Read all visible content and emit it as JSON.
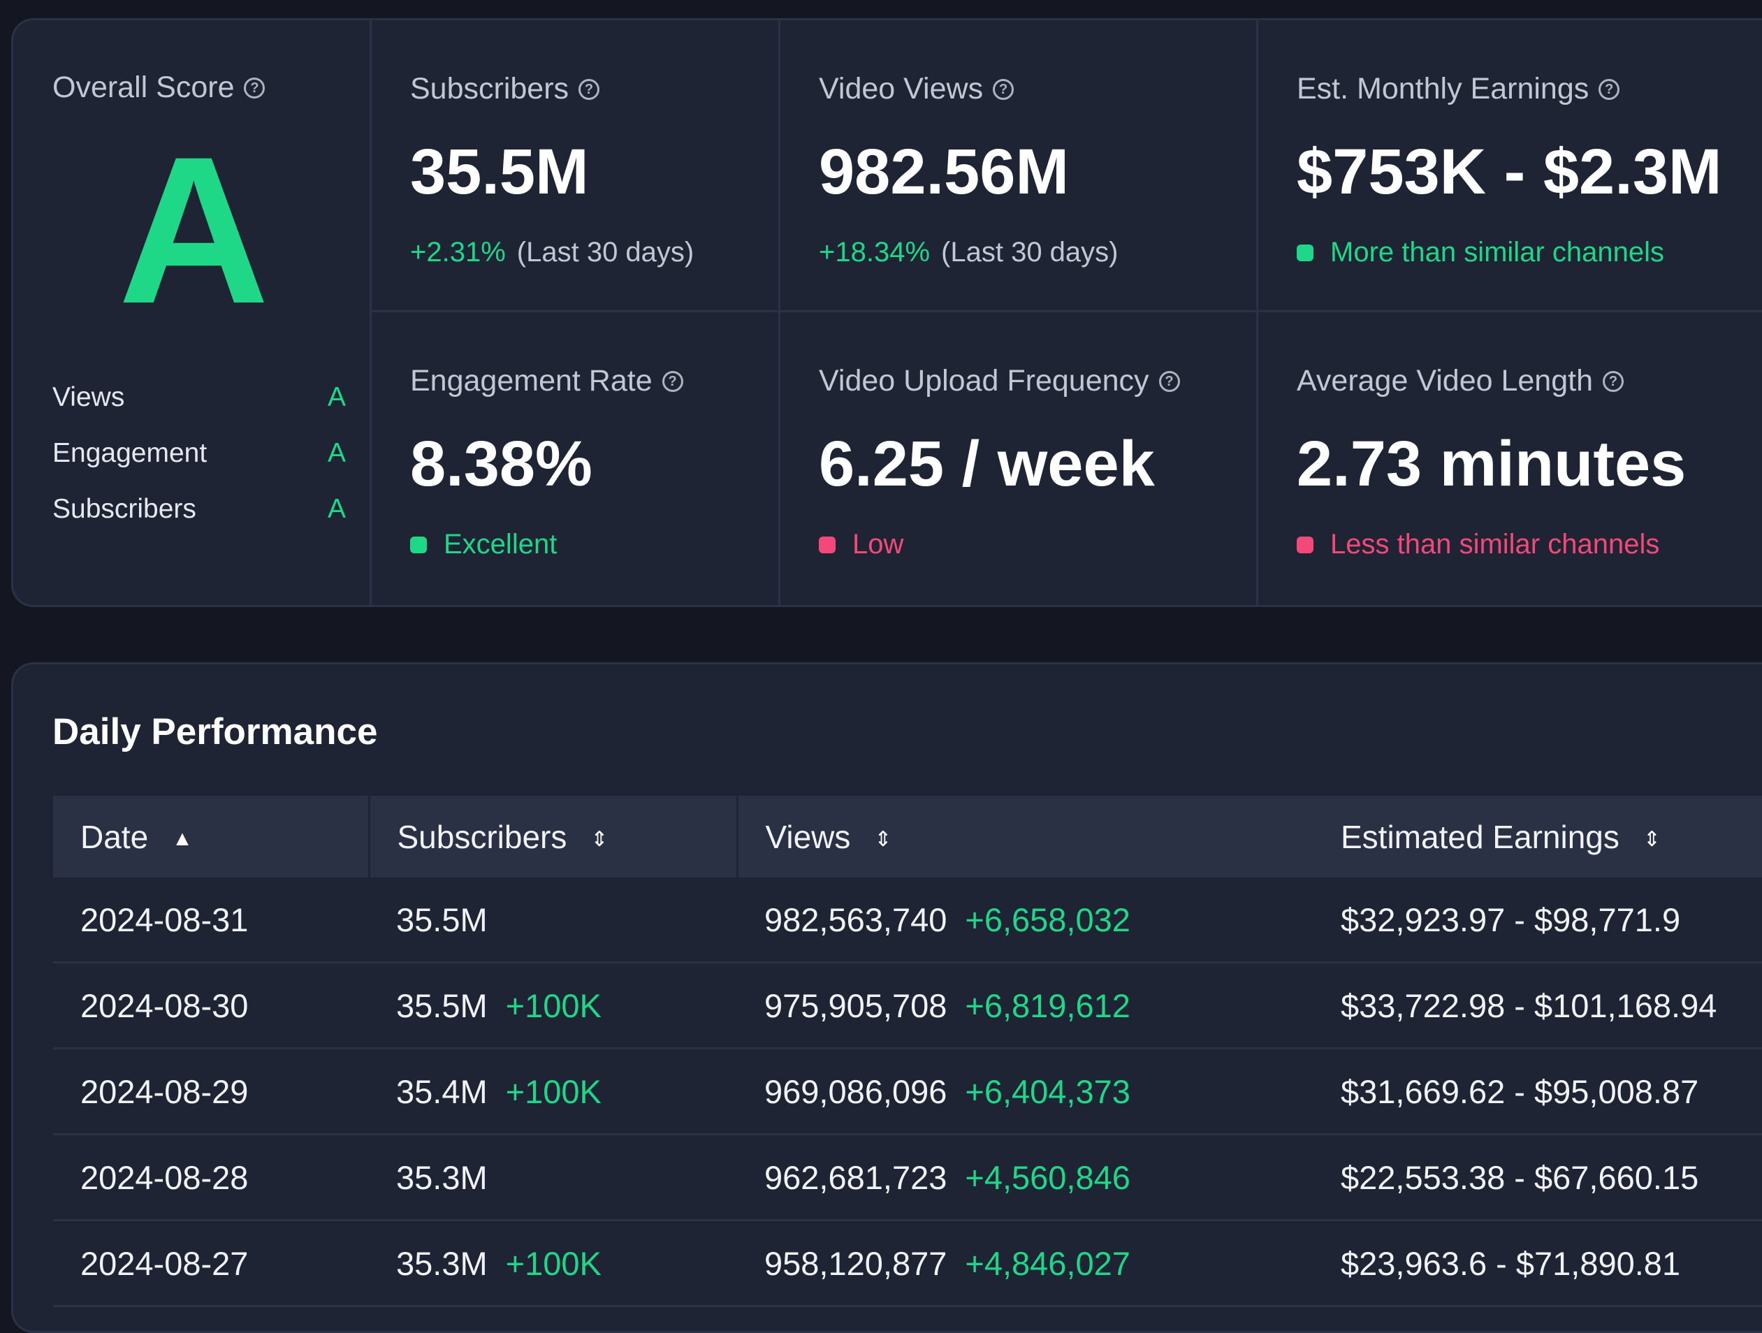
{
  "overall": {
    "title": "Overall Score",
    "grade": "A",
    "sub_grades": [
      {
        "label": "Views",
        "grade": "A"
      },
      {
        "label": "Engagement",
        "grade": "A"
      },
      {
        "label": "Subscribers",
        "grade": "A"
      }
    ]
  },
  "stats": {
    "subscribers": {
      "label": "Subscribers",
      "value": "35.5M",
      "change": "+2.31%",
      "period": "(Last 30 days)"
    },
    "views": {
      "label": "Video Views",
      "value": "982.56M",
      "change": "+18.34%",
      "period": "(Last 30 days)"
    },
    "earnings": {
      "label": "Est. Monthly Earnings",
      "value": "$753K - $2.3M",
      "status": "More than similar channels",
      "status_color": "#1ed888"
    },
    "engagement": {
      "label": "Engagement Rate",
      "value": "8.38%",
      "status": "Excellent",
      "status_color": "#1ed888"
    },
    "frequency": {
      "label": "Video Upload Frequency",
      "value": "6.25 / week",
      "status": "Low",
      "status_color": "#f2497a"
    },
    "length": {
      "label": "Average Video Length",
      "value": "2.73 minutes",
      "status": "Less than similar channels",
      "status_color": "#f2497a"
    }
  },
  "daily": {
    "title": "Daily Performance",
    "columns": [
      "Date",
      "Subscribers",
      "Views",
      "Estimated Earnings"
    ],
    "rows": [
      {
        "date": "2024-08-31",
        "subs": "35.5M",
        "subs_delta": "",
        "views": "982,563,740",
        "views_delta": "+6,658,032",
        "earnings": "$32,923.97 - $98,771.9"
      },
      {
        "date": "2024-08-30",
        "subs": "35.5M",
        "subs_delta": "+100K",
        "views": "975,905,708",
        "views_delta": "+6,819,612",
        "earnings": "$33,722.98 - $101,168.94"
      },
      {
        "date": "2024-08-29",
        "subs": "35.4M",
        "subs_delta": "+100K",
        "views": "969,086,096",
        "views_delta": "+6,404,373",
        "earnings": "$31,669.62 - $95,008.87"
      },
      {
        "date": "2024-08-28",
        "subs": "35.3M",
        "subs_delta": "",
        "views": "962,681,723",
        "views_delta": "+4,560,846",
        "earnings": "$22,553.38 - $67,660.15"
      },
      {
        "date": "2024-08-27",
        "subs": "35.3M",
        "subs_delta": "+100K",
        "views": "958,120,877",
        "views_delta": "+4,846,027",
        "earnings": "$23,963.6 - $71,890.81"
      }
    ]
  }
}
